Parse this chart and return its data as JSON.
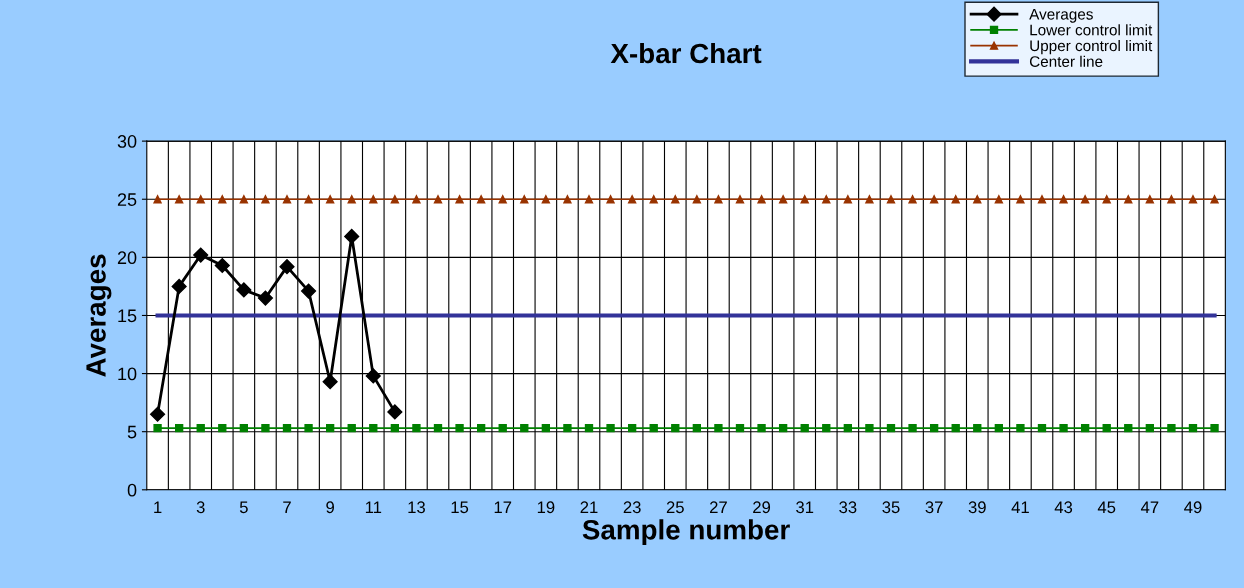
{
  "chart_data": {
    "type": "line",
    "title": "X-bar Chart",
    "xlabel": "Sample number",
    "ylabel": "Averages",
    "categories": [
      "1",
      null,
      "3",
      null,
      "5",
      null,
      "7",
      null,
      "9",
      null,
      "11",
      null,
      "13",
      null,
      "15",
      null,
      "17",
      null,
      "19",
      null,
      "21",
      null,
      "23",
      null,
      "25",
      null,
      "27",
      null,
      "29",
      null,
      "31",
      null,
      "33",
      null,
      "35",
      null,
      "37",
      null,
      "39",
      null,
      "41",
      null,
      "43",
      null,
      "45",
      null,
      "47",
      null,
      "49",
      null
    ],
    "series": [
      {
        "name": "Averages",
        "color": "#000000",
        "marker": "diamond",
        "values": [
          6.5,
          17.5,
          20.2,
          19.3,
          17.2,
          16.5,
          19.2,
          17.1,
          9.3,
          21.8,
          9.8,
          6.7,
          null,
          null,
          null,
          null,
          null,
          null,
          null,
          null,
          null,
          null,
          null,
          null,
          null,
          null,
          null,
          null,
          null,
          null,
          null,
          null,
          null,
          null,
          null,
          null,
          null,
          null,
          null,
          null,
          null,
          null,
          null,
          null,
          null,
          null,
          null,
          null,
          null,
          null
        ]
      },
      {
        "name": "Lower control limit",
        "color": "#008000",
        "marker": "square",
        "values": [
          5.3,
          5.3,
          5.3,
          5.3,
          5.3,
          5.3,
          5.3,
          5.3,
          5.3,
          5.3,
          5.3,
          5.3,
          5.3,
          5.3,
          5.3,
          5.3,
          5.3,
          5.3,
          5.3,
          5.3,
          5.3,
          5.3,
          5.3,
          5.3,
          5.3,
          5.3,
          5.3,
          5.3,
          5.3,
          5.3,
          5.3,
          5.3,
          5.3,
          5.3,
          5.3,
          5.3,
          5.3,
          5.3,
          5.3,
          5.3,
          5.3,
          5.3,
          5.3,
          5.3,
          5.3,
          5.3,
          5.3,
          5.3,
          5.3,
          5.3
        ]
      },
      {
        "name": "Upper control limit",
        "color": "#993300",
        "marker": "triangle",
        "values": [
          25,
          25,
          25,
          25,
          25,
          25,
          25,
          25,
          25,
          25,
          25,
          25,
          25,
          25,
          25,
          25,
          25,
          25,
          25,
          25,
          25,
          25,
          25,
          25,
          25,
          25,
          25,
          25,
          25,
          25,
          25,
          25,
          25,
          25,
          25,
          25,
          25,
          25,
          25,
          25,
          25,
          25,
          25,
          25,
          25,
          25,
          25,
          25,
          25,
          25
        ]
      },
      {
        "name": "Center line",
        "color": "#333399",
        "marker": "none",
        "values": [
          15,
          15,
          15,
          15,
          15,
          15,
          15,
          15,
          15,
          15,
          15,
          15,
          15,
          15,
          15,
          15,
          15,
          15,
          15,
          15,
          15,
          15,
          15,
          15,
          15,
          15,
          15,
          15,
          15,
          15,
          15,
          15,
          15,
          15,
          15,
          15,
          15,
          15,
          15,
          15,
          15,
          15,
          15,
          15,
          15,
          15,
          15,
          15,
          15,
          15
        ]
      }
    ],
    "ylim": [
      0,
      30
    ],
    "yticks": [
      0,
      5,
      10,
      15,
      20,
      25,
      30
    ],
    "grid": true,
    "legend": "top right",
    "line_style": "solid"
  }
}
